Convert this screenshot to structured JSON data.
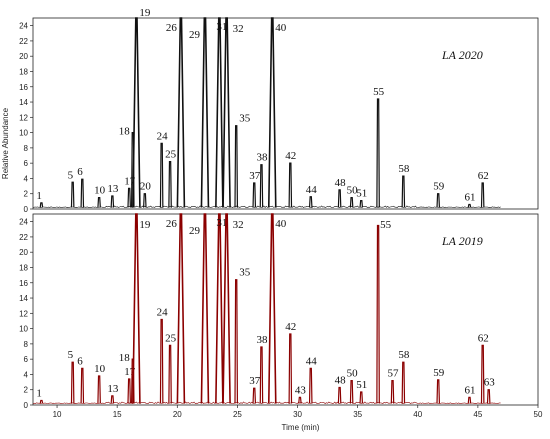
{
  "chart_data": [
    {
      "type": "line",
      "title": "LA 2020",
      "ylabel": "Relative Abundance",
      "xlabel": "",
      "xlim": [
        8,
        50
      ],
      "ylim": [
        0,
        25
      ],
      "y_ticks": [
        "0",
        "2",
        "4",
        "6",
        "8",
        "10",
        "12",
        "14",
        "16",
        "18",
        "20",
        "22",
        "24"
      ],
      "color": "#111111",
      "peaks": [
        {
          "label": "1",
          "rt": 8.7,
          "height": 0.8
        },
        {
          "label": "5",
          "rt": 11.3,
          "height": 3.5
        },
        {
          "label": "6",
          "rt": 12.1,
          "height": 3.9
        },
        {
          "label": "10",
          "rt": 13.5,
          "height": 1.5
        },
        {
          "label": "13",
          "rt": 14.6,
          "height": 1.7
        },
        {
          "label": "17",
          "rt": 16.0,
          "height": 2.7
        },
        {
          "label": "18",
          "rt": 16.3,
          "height": 10.0
        },
        {
          "label": "19",
          "rt": 16.6,
          "height": 25.0
        },
        {
          "label": "20",
          "rt": 17.3,
          "height": 2.0
        },
        {
          "label": "24",
          "rt": 18.7,
          "height": 8.6
        },
        {
          "label": "25",
          "rt": 19.4,
          "height": 6.2
        },
        {
          "label": "26",
          "rt": 20.3,
          "height": 25.0
        },
        {
          "label": "29",
          "rt": 22.3,
          "height": 25.0
        },
        {
          "label": "31",
          "rt": 23.5,
          "height": 25.0
        },
        {
          "label": "32",
          "rt": 24.1,
          "height": 25.0
        },
        {
          "label": "35",
          "rt": 24.9,
          "height": 10.9
        },
        {
          "label": "37",
          "rt": 26.4,
          "height": 3.4
        },
        {
          "label": "38",
          "rt": 27.0,
          "height": 5.8
        },
        {
          "label": "40",
          "rt": 27.9,
          "height": 25.0
        },
        {
          "label": "42",
          "rt": 29.4,
          "height": 6.0
        },
        {
          "label": "44",
          "rt": 31.1,
          "height": 1.6
        },
        {
          "label": "48",
          "rt": 33.5,
          "height": 2.5
        },
        {
          "label": "50",
          "rt": 34.5,
          "height": 1.5
        },
        {
          "label": "51",
          "rt": 35.3,
          "height": 1.1
        },
        {
          "label": "55",
          "rt": 36.7,
          "height": 14.4
        },
        {
          "label": "58",
          "rt": 38.8,
          "height": 4.3
        },
        {
          "label": "59",
          "rt": 41.7,
          "height": 2.0
        },
        {
          "label": "61",
          "rt": 44.3,
          "height": 0.6
        },
        {
          "label": "62",
          "rt": 45.4,
          "height": 3.4
        }
      ]
    },
    {
      "type": "line",
      "title": "LA 2019",
      "ylabel": "",
      "xlabel": "Time (min)",
      "xlim": [
        8,
        50
      ],
      "ylim": [
        0,
        25
      ],
      "x_ticks": [
        "10",
        "15",
        "20",
        "25",
        "30",
        "35",
        "40",
        "45",
        "50"
      ],
      "y_ticks": [
        "0",
        "2",
        "4",
        "6",
        "8",
        "10",
        "12",
        "14",
        "16",
        "18",
        "20",
        "22",
        "24"
      ],
      "color": "#8b0000",
      "peaks": [
        {
          "label": "1",
          "rt": 8.7,
          "height": 0.6
        },
        {
          "label": "5",
          "rt": 11.3,
          "height": 5.6
        },
        {
          "label": "6",
          "rt": 12.1,
          "height": 4.8
        },
        {
          "label": "10",
          "rt": 13.5,
          "height": 3.8
        },
        {
          "label": "13",
          "rt": 14.6,
          "height": 1.2
        },
        {
          "label": "17",
          "rt": 16.0,
          "height": 3.4
        },
        {
          "label": "18",
          "rt": 16.3,
          "height": 6.0
        },
        {
          "label": "19",
          "rt": 16.6,
          "height": 25.0
        },
        {
          "label": "24",
          "rt": 18.7,
          "height": 11.2
        },
        {
          "label": "25",
          "rt": 19.4,
          "height": 7.8
        },
        {
          "label": "26",
          "rt": 20.3,
          "height": 25.0
        },
        {
          "label": "29",
          "rt": 22.3,
          "height": 25.0
        },
        {
          "label": "31",
          "rt": 23.5,
          "height": 25.0
        },
        {
          "label": "32",
          "rt": 24.1,
          "height": 25.0
        },
        {
          "label": "35",
          "rt": 24.9,
          "height": 16.4
        },
        {
          "label": "37",
          "rt": 26.4,
          "height": 2.2
        },
        {
          "label": "38",
          "rt": 27.0,
          "height": 7.6
        },
        {
          "label": "40",
          "rt": 27.9,
          "height": 25.0
        },
        {
          "label": "42",
          "rt": 29.4,
          "height": 9.3
        },
        {
          "label": "43",
          "rt": 30.2,
          "height": 1.0
        },
        {
          "label": "44",
          "rt": 31.1,
          "height": 4.8
        },
        {
          "label": "48",
          "rt": 33.5,
          "height": 2.3
        },
        {
          "label": "50",
          "rt": 34.5,
          "height": 3.2
        },
        {
          "label": "51",
          "rt": 35.3,
          "height": 1.7
        },
        {
          "label": "55",
          "rt": 36.7,
          "height": 23.5
        },
        {
          "label": "57",
          "rt": 37.9,
          "height": 3.2
        },
        {
          "label": "58",
          "rt": 38.8,
          "height": 5.6
        },
        {
          "label": "59",
          "rt": 41.7,
          "height": 3.3
        },
        {
          "label": "61",
          "rt": 44.3,
          "height": 1.0
        },
        {
          "label": "62",
          "rt": 45.4,
          "height": 7.8
        },
        {
          "label": "63",
          "rt": 45.9,
          "height": 2.0
        }
      ]
    }
  ]
}
